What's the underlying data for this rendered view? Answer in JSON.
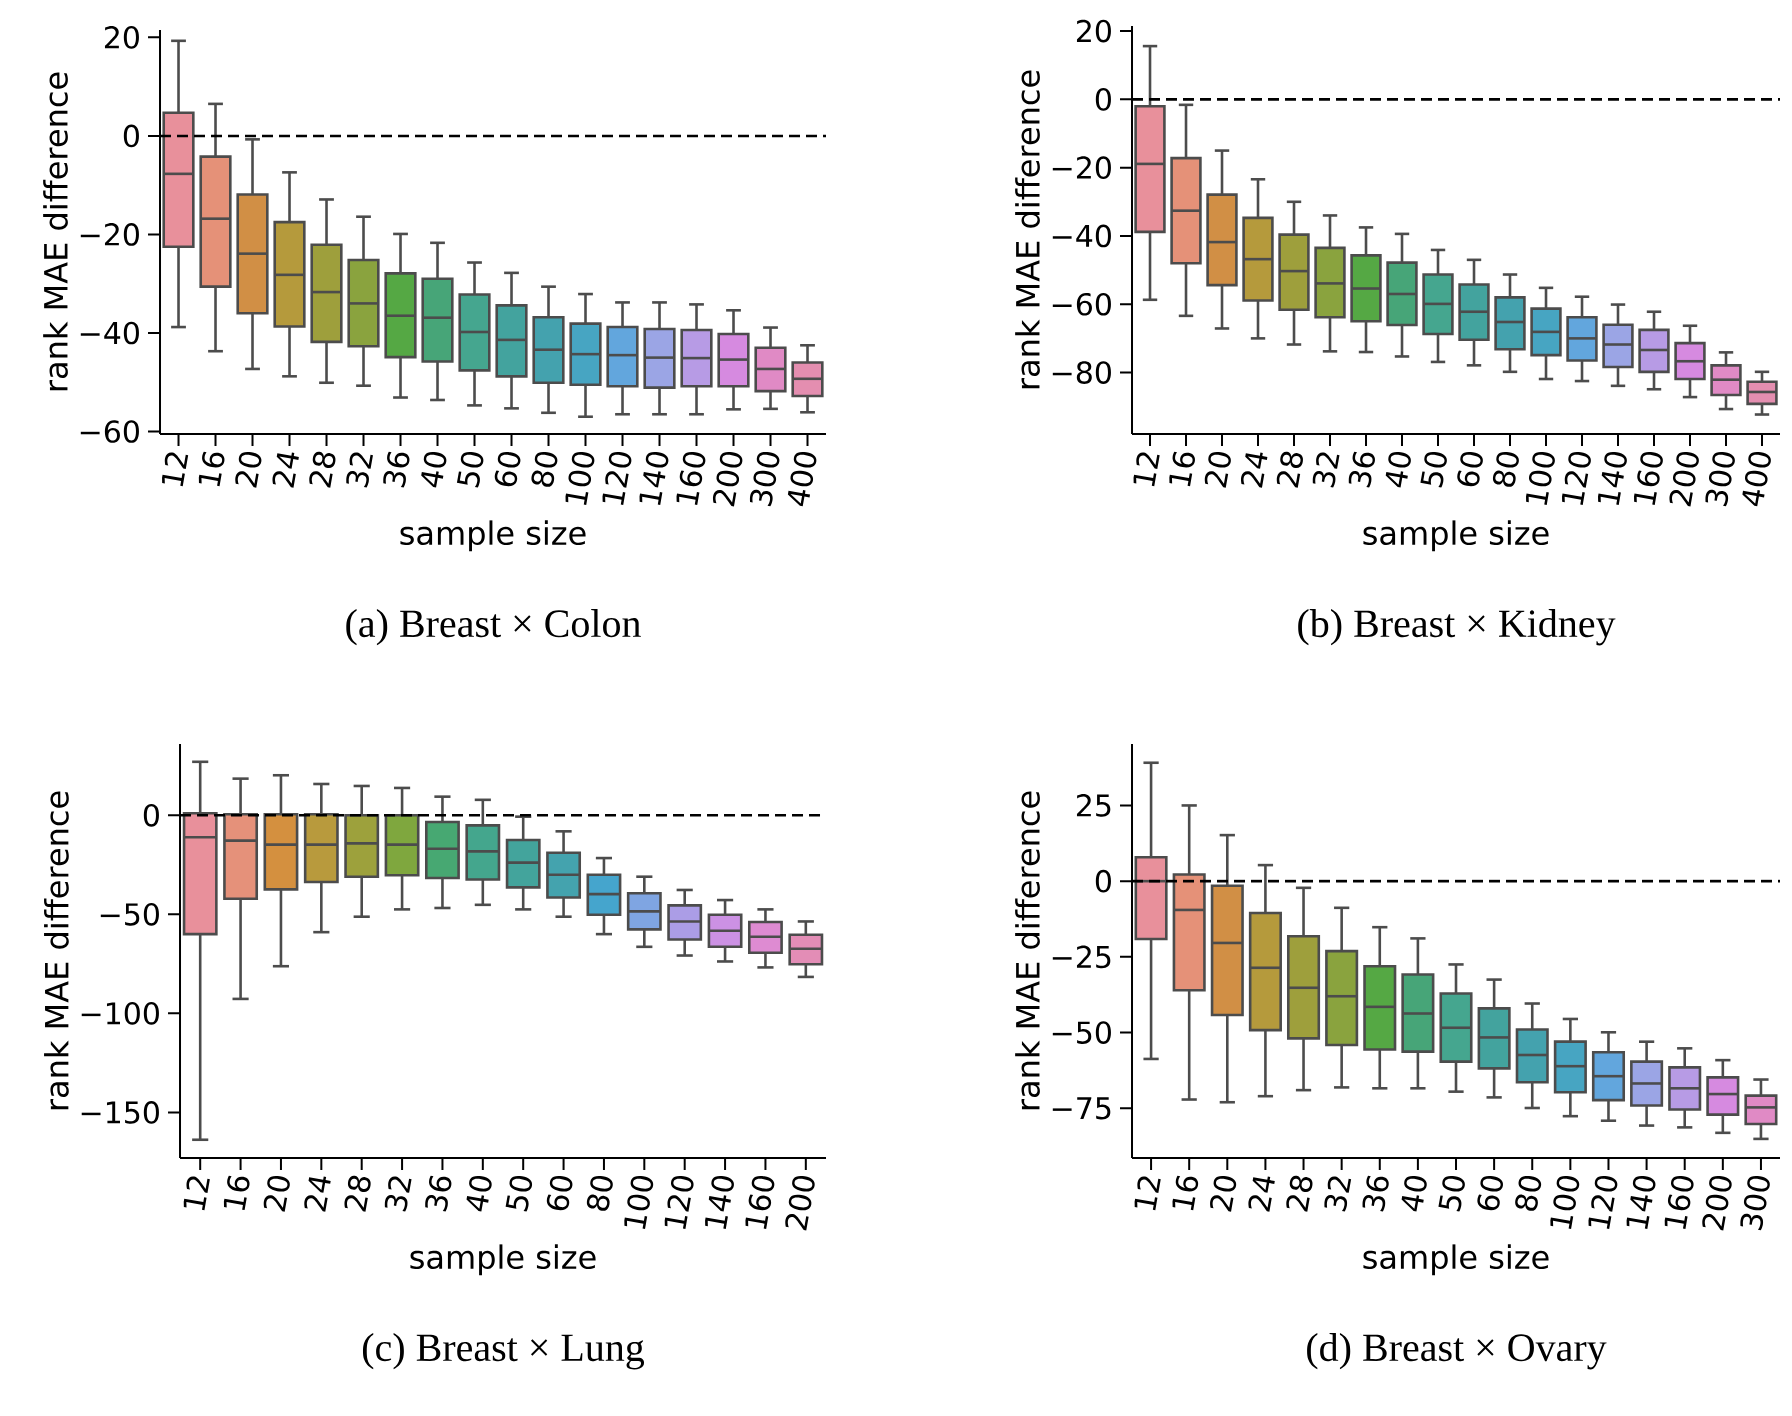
{
  "chart_data": [
    {
      "type": "box",
      "title": "(a) Breast × Colon",
      "xlabel": "sample size",
      "ylabel": "rank MAE difference",
      "categories": [
        "12",
        "16",
        "20",
        "24",
        "28",
        "32",
        "36",
        "40",
        "50",
        "60",
        "80",
        "100",
        "120",
        "140",
        "160",
        "200",
        "300",
        "400"
      ],
      "colors": [
        "#e8909b",
        "#e59178",
        "#d18f45",
        "#b59a3c",
        "#9e9f3c",
        "#8aa33e",
        "#55a844",
        "#47a578",
        "#45a68f",
        "#43a39e",
        "#44a2ae",
        "#47a5c2",
        "#62a6dd",
        "#9ba5e5",
        "#b79be5",
        "#d68ae0",
        "#e08ac5",
        "#e48eb0"
      ],
      "boxes": [
        {
          "low": -38.8,
          "q1": -22.5,
          "median": -7.7,
          "q3": 4.7,
          "high": 19.3
        },
        {
          "low": -43.7,
          "q1": -30.6,
          "median": -16.8,
          "q3": -4.2,
          "high": 6.5
        },
        {
          "low": -47.3,
          "q1": -36,
          "median": -23.9,
          "q3": -11.9,
          "high": -0.7
        },
        {
          "low": -48.8,
          "q1": -38.7,
          "median": -28.2,
          "q3": -17.5,
          "high": -7.4
        },
        {
          "low": -50.1,
          "q1": -41.8,
          "median": -31.7,
          "q3": -22.1,
          "high": -12.9
        },
        {
          "low": -50.7,
          "q1": -42.7,
          "median": -34,
          "q3": -25.2,
          "high": -16.4
        },
        {
          "low": -53.1,
          "q1": -44.9,
          "median": -36.5,
          "q3": -27.9,
          "high": -19.9
        },
        {
          "low": -53.6,
          "q1": -45.8,
          "median": -36.9,
          "q3": -29,
          "high": -21.7
        },
        {
          "low": -54.7,
          "q1": -47.6,
          "median": -39.8,
          "q3": -32.2,
          "high": -25.7
        },
        {
          "low": -55.3,
          "q1": -48.8,
          "median": -41.4,
          "q3": -34.4,
          "high": -27.8
        },
        {
          "low": -56.2,
          "q1": -50.1,
          "median": -43.4,
          "q3": -36.8,
          "high": -30.6
        },
        {
          "low": -57,
          "q1": -50.5,
          "median": -44.3,
          "q3": -38.1,
          "high": -32.1
        },
        {
          "low": -56.5,
          "q1": -50.8,
          "median": -44.5,
          "q3": -38.8,
          "high": -33.8
        },
        {
          "low": -56.5,
          "q1": -51.1,
          "median": -45,
          "q3": -39.2,
          "high": -33.8
        },
        {
          "low": -56.5,
          "q1": -50.8,
          "median": -45.1,
          "q3": -39.4,
          "high": -34.2
        },
        {
          "low": -55.5,
          "q1": -50.8,
          "median": -45.4,
          "q3": -40.2,
          "high": -35.4
        },
        {
          "low": -55.4,
          "q1": -51.8,
          "median": -47.3,
          "q3": -43,
          "high": -38.9
        },
        {
          "low": -56.1,
          "q1": -52.8,
          "median": -49.3,
          "q3": -46,
          "high": -42.5
        }
      ],
      "ylim": [
        -60.5,
        21.5
      ],
      "yticks": [
        {
          "value": -60,
          "label": "−60"
        },
        {
          "value": -40,
          "label": "−40"
        },
        {
          "value": -20,
          "label": "−20"
        },
        0,
        20
      ],
      "ref_lines": [
        {
          "axis": "y",
          "value": 0,
          "line_style": "dashed",
          "color": "#000000"
        }
      ]
    },
    {
      "type": "box",
      "title": "(b) Breast × Kidney",
      "xlabel": "sample size",
      "ylabel": "rank MAE difference",
      "categories": [
        "12",
        "16",
        "20",
        "24",
        "28",
        "32",
        "36",
        "40",
        "50",
        "60",
        "80",
        "100",
        "120",
        "140",
        "160",
        "200",
        "300",
        "400"
      ],
      "colors": [
        "#e8909b",
        "#e59178",
        "#d18f45",
        "#b59a3c",
        "#9e9f3c",
        "#8aa33e",
        "#55a844",
        "#47a578",
        "#45a68f",
        "#43a39e",
        "#44a2ae",
        "#47a5c2",
        "#62a6dd",
        "#9ba5e5",
        "#b79be5",
        "#d68ae0",
        "#e08ac5",
        "#e48eb0"
      ],
      "boxes": [
        {
          "low": -58.7,
          "q1": -38.8,
          "median": -18.9,
          "q3": -2,
          "high": 15.6
        },
        {
          "low": -63.4,
          "q1": -48,
          "median": -32.6,
          "q3": -17.2,
          "high": -1.6
        },
        {
          "low": -67.1,
          "q1": -54.4,
          "median": -41.8,
          "q3": -27.9,
          "high": -15
        },
        {
          "low": -70,
          "q1": -58.9,
          "median": -46.8,
          "q3": -34.7,
          "high": -23.4
        },
        {
          "low": -71.8,
          "q1": -61.6,
          "median": -50.3,
          "q3": -39.6,
          "high": -30
        },
        {
          "low": -73.8,
          "q1": -63.8,
          "median": -53.9,
          "q3": -43.5,
          "high": -34
        },
        {
          "low": -74,
          "q1": -65,
          "median": -55.4,
          "q3": -45.7,
          "high": -37.5
        },
        {
          "low": -75.3,
          "q1": -66.1,
          "median": -57,
          "q3": -47.8,
          "high": -39.4
        },
        {
          "low": -76.9,
          "q1": -68.7,
          "median": -59.9,
          "q3": -51.3,
          "high": -44.1
        },
        {
          "low": -77.9,
          "q1": -70.4,
          "median": -62.2,
          "q3": -54.2,
          "high": -47
        },
        {
          "low": -79.8,
          "q1": -73.2,
          "median": -65.2,
          "q3": -58,
          "high": -51.3
        },
        {
          "low": -81.9,
          "q1": -74.9,
          "median": -68.1,
          "q3": -61.3,
          "high": -55.2
        },
        {
          "low": -82.5,
          "q1": -76.5,
          "median": -70,
          "q3": -63.8,
          "high": -57.8
        },
        {
          "low": -83.9,
          "q1": -78.4,
          "median": -71.8,
          "q3": -66,
          "high": -60.1
        },
        {
          "low": -84.9,
          "q1": -79.8,
          "median": -73.4,
          "q3": -67.5,
          "high": -62.2
        },
        {
          "low": -87.2,
          "q1": -81.9,
          "median": -76.7,
          "q3": -71.4,
          "high": -66.3
        },
        {
          "low": -90.7,
          "q1": -86.6,
          "median": -82.1,
          "q3": -77.9,
          "high": -74.1
        },
        {
          "low": -92.3,
          "q1": -89.2,
          "median": -85.7,
          "q3": -82.7,
          "high": -79.8
        }
      ],
      "ylim": [
        -98,
        21.5
      ],
      "yticks": [
        {
          "value": -80,
          "label": "−80"
        },
        {
          "value": -60,
          "label": "−60"
        },
        {
          "value": -40,
          "label": "−40"
        },
        {
          "value": -20,
          "label": "−20"
        },
        0,
        20
      ],
      "ref_lines": [
        {
          "axis": "y",
          "value": 0,
          "line_style": "dashed",
          "color": "#000000"
        }
      ]
    },
    {
      "type": "box",
      "title": "(c) Breast × Lung",
      "xlabel": "sample size",
      "ylabel": "rank MAE difference",
      "categories": [
        "12",
        "16",
        "20",
        "24",
        "28",
        "32",
        "36",
        "40",
        "50",
        "60",
        "80",
        "100",
        "120",
        "140",
        "160",
        "200"
      ],
      "colors": [
        "#e8909b",
        "#e5917a",
        "#d4903f",
        "#b89a3d",
        "#9da13c",
        "#7fa73e",
        "#47a872",
        "#44a68d",
        "#43a49c",
        "#44a3ae",
        "#45a5cd",
        "#7fa5e2",
        "#ab9de6",
        "#cc91e4",
        "#de8bd2",
        "#e38db6"
      ],
      "boxes": [
        {
          "low": -163.8,
          "q1": -60,
          "median": -11.1,
          "q3": 1,
          "high": 27
        },
        {
          "low": -92.7,
          "q1": -42.1,
          "median": -12.8,
          "q3": 0.5,
          "high": 18.5
        },
        {
          "low": -76.2,
          "q1": -37.4,
          "median": -14.8,
          "q3": 0.5,
          "high": 20.2
        },
        {
          "low": -59,
          "q1": -33.7,
          "median": -14.8,
          "q3": 0.5,
          "high": 15.8
        },
        {
          "low": -51.2,
          "q1": -31,
          "median": -14.2,
          "q3": 0,
          "high": 14.8
        },
        {
          "low": -47.5,
          "q1": -30.3,
          "median": -14.8,
          "q3": 0,
          "high": 13.8
        },
        {
          "low": -46.8,
          "q1": -31.7,
          "median": -16.9,
          "q3": -3.4,
          "high": 9.4
        },
        {
          "low": -45.2,
          "q1": -32.4,
          "median": -18.2,
          "q3": -5.1,
          "high": 7.8
        },
        {
          "low": -47.5,
          "q1": -36.4,
          "median": -23.9,
          "q3": -12.5,
          "high": -0.7
        },
        {
          "low": -51.2,
          "q1": -41.5,
          "median": -30,
          "q3": -18.9,
          "high": -8.1
        },
        {
          "low": -60,
          "q1": -50.2,
          "median": -39.8,
          "q3": -30,
          "high": -21.6
        },
        {
          "low": -66.4,
          "q1": -57.6,
          "median": -48.5,
          "q3": -39.4,
          "high": -31
        },
        {
          "low": -70.8,
          "q1": -62.7,
          "median": -53.6,
          "q3": -45.5,
          "high": -37.7
        },
        {
          "low": -73.8,
          "q1": -66.4,
          "median": -58.3,
          "q3": -50.2,
          "high": -42.8
        },
        {
          "low": -76.8,
          "q1": -69.4,
          "median": -61.3,
          "q3": -53.9,
          "high": -47.5
        },
        {
          "low": -81.6,
          "q1": -75.2,
          "median": -67.4,
          "q3": -60.3,
          "high": -53.6
        }
      ],
      "ylim": [
        -173,
        36
      ],
      "yticks": [
        {
          "value": -150,
          "label": "−150"
        },
        {
          "value": -100,
          "label": "−100"
        },
        {
          "value": -50,
          "label": "−50"
        },
        0
      ],
      "ref_lines": [
        {
          "axis": "y",
          "value": 0,
          "line_style": "dashed",
          "color": "#000000"
        }
      ]
    },
    {
      "type": "box",
      "title": "(d) Breast × Ovary",
      "xlabel": "sample size",
      "ylabel": "rank MAE difference",
      "categories": [
        "12",
        "16",
        "20",
        "24",
        "28",
        "32",
        "36",
        "40",
        "50",
        "60",
        "80",
        "100",
        "120",
        "140",
        "160",
        "200",
        "300"
      ],
      "colors": [
        "#e8909b",
        "#e59178",
        "#d18f45",
        "#b59a3c",
        "#9e9f3c",
        "#8aa33e",
        "#55a844",
        "#47a578",
        "#45a68f",
        "#43a39e",
        "#44a2ae",
        "#47a5c2",
        "#62a6dd",
        "#9ba5e5",
        "#b79be5",
        "#d68ae0",
        "#e08ac5"
      ],
      "boxes": [
        {
          "low": -58.7,
          "q1": -19.1,
          "median": 0,
          "q3": 7.9,
          "high": 39.1
        },
        {
          "low": -72.1,
          "q1": -36,
          "median": -9.5,
          "q3": 2.2,
          "high": 25
        },
        {
          "low": -73,
          "q1": -44.2,
          "median": -20.4,
          "q3": -1.5,
          "high": 15.2
        },
        {
          "low": -71,
          "q1": -49.2,
          "median": -28.6,
          "q3": -10.5,
          "high": 5.3
        },
        {
          "low": -69,
          "q1": -51.9,
          "median": -35.2,
          "q3": -18.2,
          "high": -2.2
        },
        {
          "low": -68.1,
          "q1": -54.1,
          "median": -38,
          "q3": -23.1,
          "high": -8.8
        },
        {
          "low": -68.4,
          "q1": -55.6,
          "median": -41.5,
          "q3": -28.1,
          "high": -15.2
        },
        {
          "low": -68.4,
          "q1": -56.3,
          "median": -43.7,
          "q3": -30.8,
          "high": -18.9
        },
        {
          "low": -69.5,
          "q1": -59.6,
          "median": -48.4,
          "q3": -37.1,
          "high": -27.5
        },
        {
          "low": -71.4,
          "q1": -61.8,
          "median": -51.6,
          "q3": -42,
          "high": -32.5
        },
        {
          "low": -74.9,
          "q1": -66.4,
          "median": -57.4,
          "q3": -49,
          "high": -40.4
        },
        {
          "low": -77.6,
          "q1": -69.7,
          "median": -61.1,
          "q3": -53,
          "high": -45.5
        },
        {
          "low": -79.1,
          "q1": -72.3,
          "median": -64.4,
          "q3": -56.5,
          "high": -49.9
        },
        {
          "low": -80.7,
          "q1": -74.1,
          "median": -66.8,
          "q3": -59.6,
          "high": -53
        },
        {
          "low": -81.3,
          "q1": -75.4,
          "median": -68.4,
          "q3": -61.5,
          "high": -55.2
        },
        {
          "low": -83.1,
          "q1": -77.1,
          "median": -70.3,
          "q3": -64.8,
          "high": -59.1
        },
        {
          "low": -85.1,
          "q1": -80.2,
          "median": -74.7,
          "q3": -70.8,
          "high": -65.5
        }
      ],
      "ylim": [
        -91.4,
        45.3
      ],
      "yticks": [
        {
          "value": -75,
          "label": "−75"
        },
        {
          "value": -50,
          "label": "−50"
        },
        {
          "value": -25,
          "label": "−25"
        },
        0,
        25
      ],
      "ref_lines": [
        {
          "axis": "y",
          "value": 0,
          "line_style": "dashed",
          "color": "#000000"
        }
      ]
    }
  ]
}
